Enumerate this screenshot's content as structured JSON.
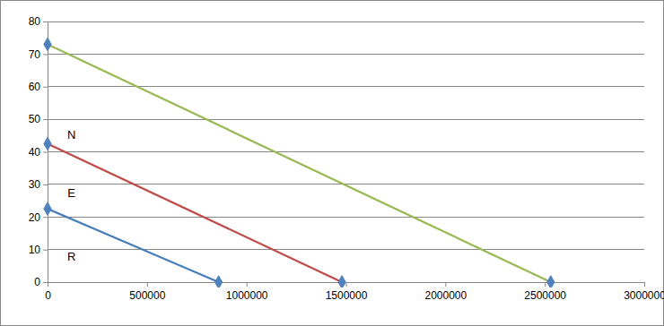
{
  "chart_data": {
    "type": "line",
    "series": [
      {
        "x": [
          0,
          860000
        ],
        "values": [
          22.5,
          0
        ],
        "color": "#4a7ebb",
        "marker": "diamond"
      },
      {
        "x": [
          0,
          1480000
        ],
        "values": [
          42.5,
          0
        ],
        "color": "#be4b48",
        "marker": "diamond"
      },
      {
        "x": [
          0,
          2530000
        ],
        "values": [
          73,
          0
        ],
        "color": "#98b954",
        "marker": "diamond"
      }
    ],
    "annotations": [
      {
        "text": "N",
        "x": 120000,
        "y": 45
      },
      {
        "text": "E",
        "x": 120000,
        "y": 27
      },
      {
        "text": "R",
        "x": 120000,
        "y": 7.5
      }
    ],
    "xlim": [
      0,
      3000000
    ],
    "xticks": [
      0,
      500000,
      1000000,
      1500000,
      2000000,
      2500000,
      3000000
    ],
    "ylim": [
      0,
      80
    ],
    "yticks": [
      0,
      10,
      20,
      30,
      40,
      50,
      60,
      70,
      80
    ],
    "grid": true
  }
}
